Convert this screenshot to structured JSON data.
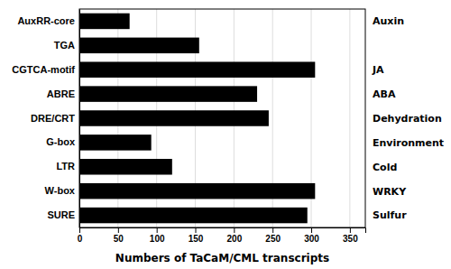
{
  "chart_data": {
    "type": "bar",
    "orientation": "horizontal",
    "x_label": "Numbers of TaCaM/CML transcripts",
    "categories": [
      "AuxRR-core",
      "TGA",
      "CGTCA-motif",
      "ABRE",
      "DRE/CRT",
      "G-box",
      "LTR",
      "W-box",
      "SURE"
    ],
    "values": [
      65,
      155,
      305,
      230,
      245,
      93,
      120,
      305,
      295
    ],
    "annotations": [
      "Auxin",
      null,
      "JA",
      "ABA",
      "Dehydration",
      "Environment",
      "Cold",
      "WRKY",
      "Sulfur"
    ],
    "color": "#000000",
    "xlim": [
      0,
      370
    ],
    "xticks": [
      0,
      50,
      100,
      150,
      200,
      250,
      300,
      350
    ],
    "grid": true
  }
}
